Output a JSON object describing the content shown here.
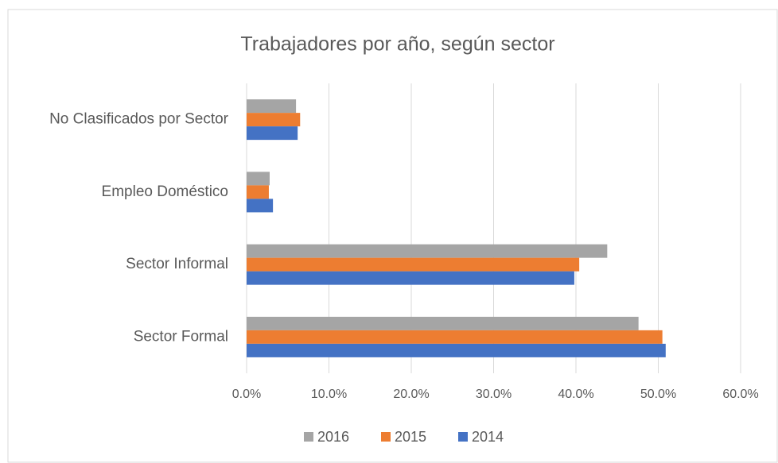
{
  "chart_data": {
    "type": "bar",
    "orientation": "horizontal",
    "title": "Trabajadores por año, según sector",
    "categories": [
      "No Clasificados por Sector",
      "Empleo Doméstico",
      "Sector Informal",
      "Sector Formal"
    ],
    "series": [
      {
        "name": "2016",
        "color": "#a5a5a5",
        "values": [
          6.0,
          2.8,
          43.8,
          47.6
        ]
      },
      {
        "name": "2015",
        "color": "#ed7d31",
        "values": [
          6.5,
          2.7,
          40.4,
          50.5
        ]
      },
      {
        "name": "2014",
        "color": "#4472c4",
        "values": [
          6.2,
          3.2,
          39.8,
          50.9
        ]
      }
    ],
    "xlim": [
      0,
      60
    ],
    "xticks": [
      {
        "value": 0,
        "label": "0.0%"
      },
      {
        "value": 10,
        "label": "10.0%"
      },
      {
        "value": 20,
        "label": "20.0%"
      },
      {
        "value": 30,
        "label": "30.0%"
      },
      {
        "value": 40,
        "label": "40.0%"
      },
      {
        "value": 50,
        "label": "50.0%"
      },
      {
        "value": 60,
        "label": "60.0%"
      }
    ],
    "grid": true,
    "legend": "bottom"
  }
}
